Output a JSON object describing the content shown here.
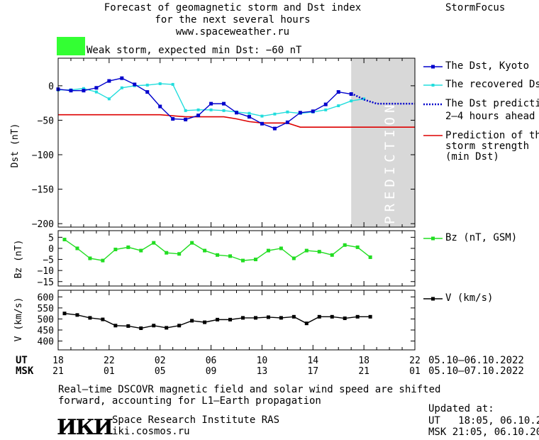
{
  "header": {
    "title_line1": "Forecast of geomagnetic storm and Dst index",
    "title_line2": "for the next several hours",
    "url": "www.spaceweather.ru",
    "brand": "StormFocus",
    "storm_label": "Weak storm, expected min Dst: −60 nT",
    "storm_color": "#33ff33"
  },
  "colors": {
    "dst": "#0000cc",
    "recovered": "#22dddd",
    "prediction": "#0000cc",
    "strength": "#dd0000",
    "bz": "#22dd22",
    "v": "#000000",
    "band": "#d8d8d8"
  },
  "legend": {
    "dst": "The Dst, Kyoto",
    "recovered": "The recovered Dst",
    "prediction_l1": "The Dst prediction",
    "prediction_l2": "2–4 hours ahead",
    "strength_l1": "Prediction of the",
    "strength_l2": "storm strength",
    "strength_l3": "(min Dst)",
    "bz": "Bz (nT, GSM)",
    "v": "V (km/s)"
  },
  "time_axis": {
    "ut_label": "UT",
    "msk_label": "MSK",
    "ut_ticks": [
      "18",
      "22",
      "02",
      "06",
      "10",
      "14",
      "18",
      "22"
    ],
    "msk_ticks": [
      "21",
      "01",
      "05",
      "09",
      "13",
      "17",
      "21",
      "01"
    ],
    "ut_range": "05.10–06.10.2022",
    "msk_range": "05.10–07.10.2022"
  },
  "footer": {
    "note_line1": "Real–time DSCOVR magnetic field and solar wind speed are shifted",
    "note_line2": "forward, accounting for L1–Earth propagation",
    "logo": "ИКИ",
    "institute": "Space Research Institute RAS",
    "website": "iki.cosmos.ru",
    "updated_label": "Updated at:",
    "updated_ut": "UT   18:05, 06.10.2022",
    "updated_msk": "MSK 21:05, 06.10.2022"
  },
  "chart_data": [
    {
      "type": "line",
      "title": "",
      "ylabel": "Dst (nT)",
      "x_unit": "hours from 18 UT 05.10.2022",
      "xlim": [
        0,
        28
      ],
      "ylim": [
        -205,
        40
      ],
      "yticks": [
        0,
        -50,
        -100,
        -150,
        -200
      ],
      "prediction_band": {
        "x": [
          23,
          28
        ],
        "label": "PREDICTION"
      },
      "series": [
        {
          "name": "The Dst, Kyoto",
          "x": [
            0,
            1,
            2,
            3,
            4,
            5,
            6,
            7,
            8,
            9,
            10,
            11,
            12,
            13,
            14,
            15,
            16,
            17,
            18,
            19,
            20,
            21,
            22,
            23
          ],
          "y": [
            -5,
            -7,
            -7,
            -3,
            7,
            11,
            2,
            -9,
            -30,
            -48,
            -49,
            -43,
            -26,
            -26,
            -39,
            -45,
            -55,
            -62,
            -53,
            -39,
            -37,
            -27,
            -9,
            -12
          ]
        },
        {
          "name": "The recovered Dst",
          "x": [
            0,
            1,
            2,
            3,
            4,
            5,
            6,
            7,
            8,
            9,
            10,
            11,
            12,
            13,
            14,
            15,
            16,
            17,
            18,
            19,
            20,
            21,
            22,
            23,
            24
          ],
          "y": [
            -6,
            -6,
            -4,
            -9,
            -19,
            -3,
            0,
            1,
            3,
            2,
            -36,
            -35,
            -35,
            -36,
            -38,
            -40,
            -44,
            -41,
            -38,
            -40,
            -38,
            -35,
            -29,
            -22,
            -19
          ]
        },
        {
          "name": "The Dst prediction 2–4 hours ahead",
          "x": [
            23,
            24,
            25,
            26,
            27,
            28
          ],
          "y": [
            -11,
            -20,
            -26,
            -26,
            -26,
            -26
          ]
        },
        {
          "name": "Prediction of the storm strength (min Dst)",
          "x": [
            0,
            4,
            8,
            10,
            12,
            13,
            14,
            15,
            16,
            17,
            18,
            18.5,
            19,
            20,
            22,
            24,
            26,
            28
          ],
          "y": [
            -42,
            -42,
            -42,
            -45,
            -45,
            -45,
            -48,
            -52,
            -54,
            -54,
            -54,
            -57,
            -60,
            -60,
            -60,
            -60,
            -60,
            -60
          ]
        }
      ]
    },
    {
      "type": "line",
      "ylabel": "Bz (nT)",
      "xlim": [
        0,
        28
      ],
      "ylim": [
        -17,
        8
      ],
      "yticks": [
        5,
        0,
        -5,
        -10,
        -15
      ],
      "series": [
        {
          "name": "Bz (nT, GSM)",
          "x": [
            0.5,
            1.5,
            2.5,
            3.5,
            4.5,
            5.5,
            6.5,
            7.5,
            8.5,
            9.5,
            10.5,
            11.5,
            12.5,
            13.5,
            14.5,
            15.5,
            16.5,
            17.5,
            18.5,
            19.5,
            20.5,
            21.5,
            22.5,
            23.5,
            24.5
          ],
          "y": [
            4,
            0,
            -4.5,
            -5.5,
            -0.5,
            0.5,
            -1,
            2.5,
            -2,
            -2.5,
            2.5,
            -1,
            -3,
            -3.5,
            -5.5,
            -5,
            -1,
            0,
            -4.5,
            -1,
            -1.5,
            -3,
            1.5,
            0.5,
            -4
          ]
        }
      ]
    },
    {
      "type": "line",
      "ylabel": "V (km/s)",
      "xlim": [
        0,
        28
      ],
      "ylim": [
        360,
        630
      ],
      "yticks": [
        600,
        550,
        500,
        450,
        400
      ],
      "series": [
        {
          "name": "V (km/s)",
          "x": [
            0.5,
            1.5,
            2.5,
            3.5,
            4.5,
            5.5,
            6.5,
            7.5,
            8.5,
            9.5,
            10.5,
            11.5,
            12.5,
            13.5,
            14.5,
            15.5,
            16.5,
            17.5,
            18.5,
            19.5,
            20.5,
            21.5,
            22.5,
            23.5,
            24.5
          ],
          "y": [
            525,
            518,
            505,
            498,
            470,
            468,
            458,
            470,
            460,
            470,
            492,
            485,
            497,
            497,
            505,
            505,
            508,
            505,
            510,
            480,
            510,
            510,
            503,
            510,
            510
          ]
        }
      ]
    }
  ]
}
